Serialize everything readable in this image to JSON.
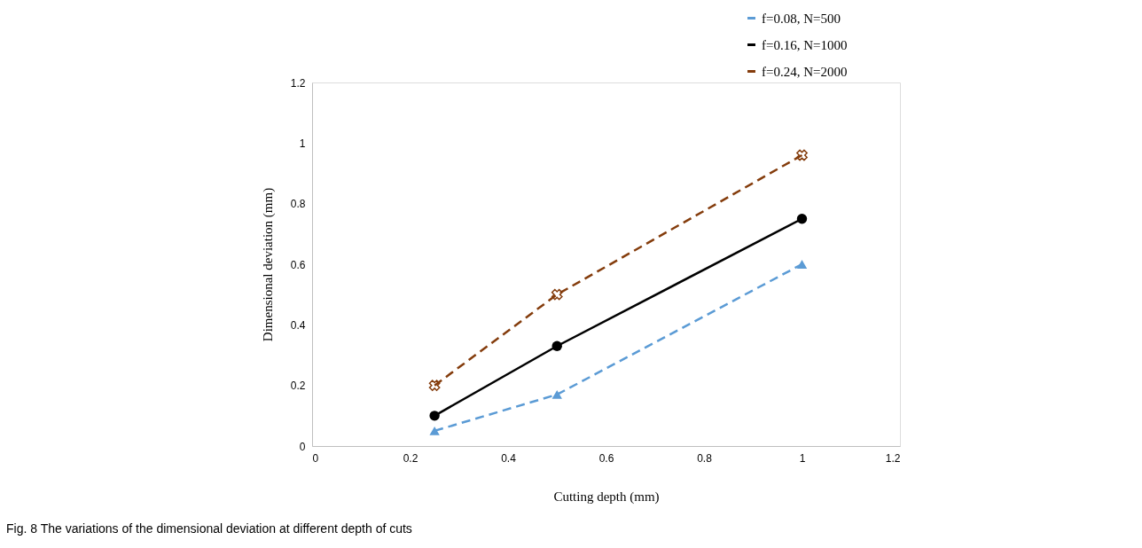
{
  "chart_data": {
    "type": "line",
    "xlabel": "Cutting depth (mm)",
    "ylabel": "Dimensional deviation (mm)",
    "x": [
      0.25,
      0.5,
      1
    ],
    "series": [
      {
        "name": "f=0.08, N=500",
        "color": "#5b9bd5",
        "values": [
          0.05,
          0.17,
          0.6
        ],
        "marker": "triangle",
        "line_style": "dashed"
      },
      {
        "name": "f=0.16, N=1000",
        "color": "#000000",
        "values": [
          0.1,
          0.33,
          0.75
        ],
        "marker": "circle",
        "line_style": "solid"
      },
      {
        "name": "f=0.24, N=2000",
        "color": "#843c0c",
        "values": [
          0.2,
          0.5,
          0.96
        ],
        "marker": "cross",
        "line_style": "dashed"
      }
    ],
    "xlim": [
      0,
      1.2
    ],
    "xticks": [
      0,
      0.2,
      0.4,
      0.6,
      0.8,
      1,
      1.2
    ],
    "ylim": [
      0,
      1.2
    ],
    "yticks": [
      0,
      0.2,
      0.4,
      0.6,
      0.8,
      1,
      1.2
    ],
    "grid": false,
    "legend": "top right",
    "annotations": [
      "Fig. 8 The variations of the dimensional deviation at different depth of cuts"
    ]
  }
}
